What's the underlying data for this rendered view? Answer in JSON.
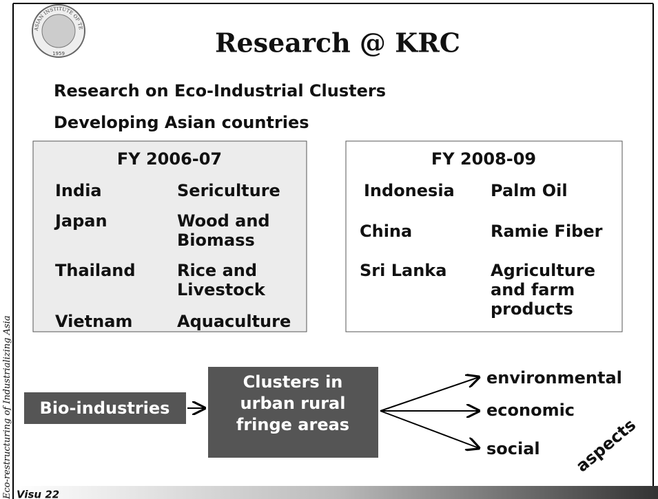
{
  "logo": {
    "name": "ASIAN INSTITUTE OF TECHNOLOGY",
    "year": "1959"
  },
  "title": "Research @ KRC",
  "subtitles": [
    "Research on Eco-Industrial Clusters",
    "Developing Asian countries"
  ],
  "panels": [
    {
      "heading": "FY 2006-07",
      "rows": [
        {
          "country": "India",
          "sector": [
            "Sericulture"
          ]
        },
        {
          "country": "Japan",
          "sector": [
            "Wood and",
            "Biomass"
          ]
        },
        {
          "country": "Thailand",
          "sector": [
            "Rice and",
            "Livestock"
          ]
        },
        {
          "country": "Vietnam",
          "sector": [
            "Aquaculture"
          ]
        }
      ]
    },
    {
      "heading": "FY 2008-09",
      "rows": [
        {
          "country": "Indonesia",
          "sector": [
            "Palm Oil"
          ]
        },
        {
          "country": "China",
          "sector": [
            "Ramie Fiber"
          ]
        },
        {
          "country": "Sri Lanka",
          "sector": [
            "Agriculture",
            "and farm",
            "products"
          ]
        }
      ]
    }
  ],
  "diagram": {
    "source": "Bio-industries",
    "cluster": [
      "Clusters in",
      "urban rural",
      "fringe areas"
    ],
    "outcomes": [
      "environmental",
      "economic",
      "social"
    ],
    "aspects": "aspects"
  },
  "sidebar": "Eco-restructuring of Industrializing Asia",
  "footer": "Visu 22"
}
